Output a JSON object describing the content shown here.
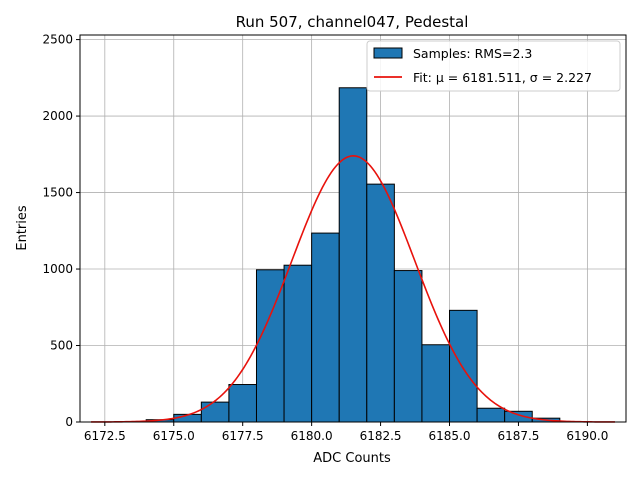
{
  "chart_data": {
    "type": "bar",
    "title": "Run 507, channel047, Pedestal",
    "xlabel": "ADC Counts",
    "ylabel": "Entries",
    "xlim": [
      6171.6,
      6191.4
    ],
    "ylim": [
      0,
      2530
    ],
    "xticks": [
      6172.5,
      6175.0,
      6177.5,
      6180.0,
      6182.5,
      6185.0,
      6187.5,
      6190.0
    ],
    "xtick_labels": [
      "6172.5",
      "6175.0",
      "6177.5",
      "6180.0",
      "6182.5",
      "6185.0",
      "6187.5",
      "6190.0"
    ],
    "yticks": [
      0,
      500,
      1000,
      1500,
      2000,
      2500
    ],
    "ytick_labels": [
      "0",
      "500",
      "1000",
      "1500",
      "2000",
      "2500"
    ],
    "grid": true,
    "bins": [
      {
        "x0": 6174,
        "x1": 6175,
        "value": 15
      },
      {
        "x0": 6175,
        "x1": 6176,
        "value": 50
      },
      {
        "x0": 6176,
        "x1": 6177,
        "value": 130
      },
      {
        "x0": 6177,
        "x1": 6178,
        "value": 245
      },
      {
        "x0": 6178,
        "x1": 6179,
        "value": 995
      },
      {
        "x0": 6179,
        "x1": 6180,
        "value": 1025
      },
      {
        "x0": 6180,
        "x1": 6181,
        "value": 1235
      },
      {
        "x0": 6181,
        "x1": 6182,
        "value": 2185
      },
      {
        "x0": 6182,
        "x1": 6183,
        "value": 1555
      },
      {
        "x0": 6183,
        "x1": 6184,
        "value": 990
      },
      {
        "x0": 6184,
        "x1": 6185,
        "value": 505
      },
      {
        "x0": 6185,
        "x1": 6186,
        "value": 730
      },
      {
        "x0": 6186,
        "x1": 6187,
        "value": 90
      },
      {
        "x0": 6187,
        "x1": 6188,
        "value": 70
      },
      {
        "x0": 6188,
        "x1": 6189,
        "value": 25
      }
    ],
    "fit": {
      "mu": 6181.511,
      "sigma": 2.227,
      "amplitude": 1740,
      "x_range": [
        6172,
        6191
      ]
    },
    "legend": {
      "position": "top-right",
      "entries": [
        {
          "label": "Samples: RMS=2.3",
          "kind": "patch"
        },
        {
          "label": "Fit: μ = 6181.511, σ = 2.227",
          "kind": "line"
        }
      ]
    },
    "colors": {
      "bar_fill": "#1f77b4",
      "bar_edge": "#000000",
      "fit_line": "#e8120c",
      "grid": "#b0b0b0"
    }
  }
}
